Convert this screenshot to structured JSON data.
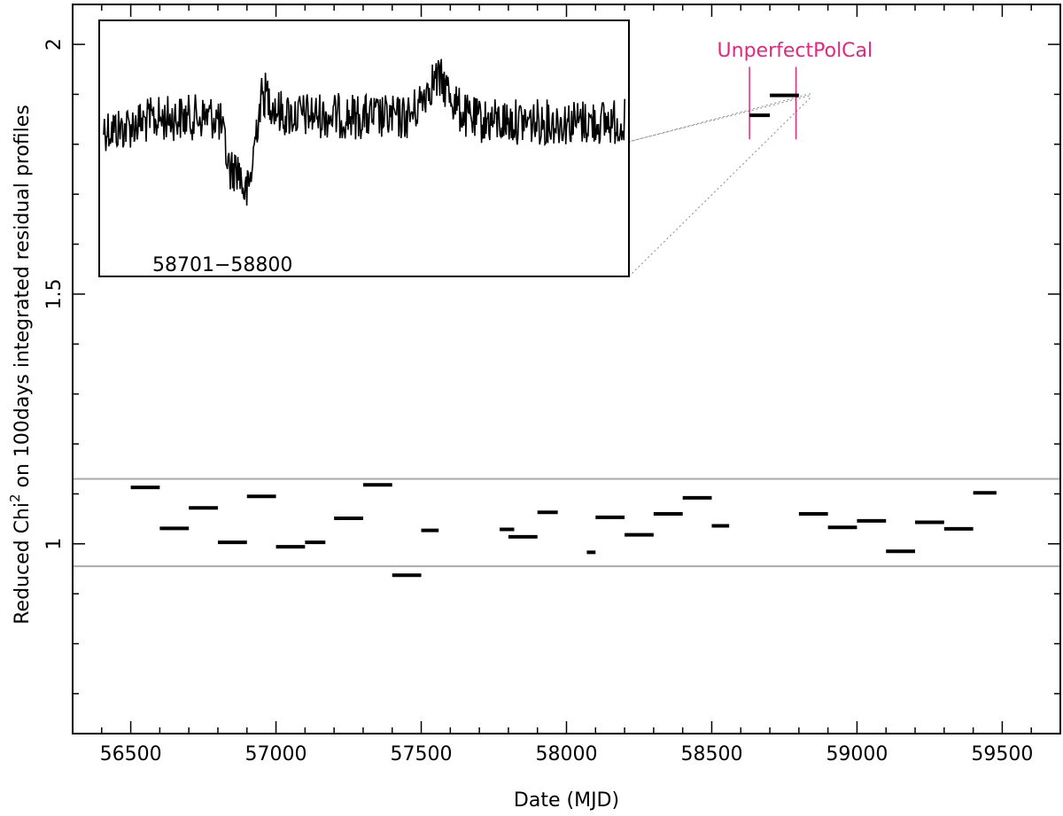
{
  "chart_data": {
    "type": "scatter",
    "xlabel": "Date (MJD)",
    "ylabel": "Reduced Chi",
    "ylabel_superscript": "2",
    "ylabel_tail": " on 100days integrated residual profiles",
    "xlim": [
      56300,
      59700
    ],
    "ylim": [
      0.62,
      2.08
    ],
    "x_ticks": [
      56500,
      57000,
      57500,
      58000,
      58500,
      59000,
      59500
    ],
    "y_ticks": [
      1,
      1.5,
      2
    ],
    "y_tick_labels": [
      "1",
      "1.5",
      "2"
    ],
    "reference_lines": [
      1.13,
      0.955
    ],
    "colors": {
      "points": "#000000",
      "reference": "#aaaaaa",
      "annotation": "#e0287e"
    },
    "series": [
      {
        "segments": [
          {
            "x": [
              56500,
              56600
            ],
            "y": 1.113
          },
          {
            "x": [
              56600,
              56700
            ],
            "y": 1.031
          },
          {
            "x": [
              56700,
              56800
            ],
            "y": 1.072
          },
          {
            "x": [
              56800,
              56900
            ],
            "y": 1.003
          },
          {
            "x": [
              56900,
              57000
            ],
            "y": 1.095
          },
          {
            "x": [
              57000,
              57100
            ],
            "y": 0.994
          },
          {
            "x": [
              57100,
              57170
            ],
            "y": 1.003
          },
          {
            "x": [
              57200,
              57300
            ],
            "y": 1.051
          },
          {
            "x": [
              57300,
              57400
            ],
            "y": 1.118
          },
          {
            "x": [
              57400,
              57500
            ],
            "y": 0.937
          },
          {
            "x": [
              57500,
              57560
            ],
            "y": 1.027
          },
          {
            "x": [
              57770,
              57820
            ],
            "y": 1.029
          },
          {
            "x": [
              57800,
              57900
            ],
            "y": 1.014
          },
          {
            "x": [
              57900,
              57970
            ],
            "y": 1.063
          },
          {
            "x": [
              58070,
              58100
            ],
            "y": 0.983
          },
          {
            "x": [
              58100,
              58200
            ],
            "y": 1.053
          },
          {
            "x": [
              58200,
              58300
            ],
            "y": 1.018
          },
          {
            "x": [
              58300,
              58400
            ],
            "y": 1.06
          },
          {
            "x": [
              58400,
              58500
            ],
            "y": 1.092
          },
          {
            "x": [
              58500,
              58560
            ],
            "y": 1.036
          },
          {
            "x": [
              58630,
              58700
            ],
            "y": 1.858
          },
          {
            "x": [
              58700,
              58800
            ],
            "y": 1.898
          },
          {
            "x": [
              58800,
              58900
            ],
            "y": 1.06
          },
          {
            "x": [
              58900,
              59000
            ],
            "y": 1.033
          },
          {
            "x": [
              59000,
              59100
            ],
            "y": 1.046
          },
          {
            "x": [
              59100,
              59200
            ],
            "y": 0.985
          },
          {
            "x": [
              59200,
              59300
            ],
            "y": 1.043
          },
          {
            "x": [
              59300,
              59400
            ],
            "y": 1.03
          },
          {
            "x": [
              59400,
              59480
            ],
            "y": 1.102
          }
        ]
      }
    ],
    "annotation": {
      "text": "UnperfectPolCal",
      "markers_x": [
        58630,
        58790
      ],
      "marker_y_range": [
        1.81,
        1.955
      ]
    },
    "inset": {
      "label": "58701−58800",
      "target_x": 58750,
      "target_y": 1.898
    }
  }
}
